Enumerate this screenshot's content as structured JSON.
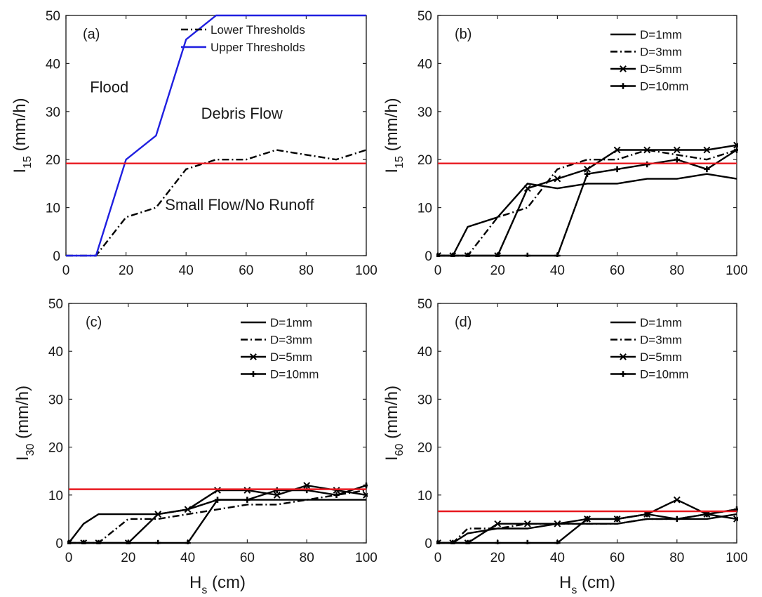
{
  "chart_data": [
    {
      "type": "line",
      "panel_label": "(a)",
      "xlabel_main": "",
      "xlabel_sub": "",
      "ylabel_main": "I",
      "ylabel_sub": "15",
      "ylabel_unit": " (mm/h)",
      "xlim": [
        0,
        100
      ],
      "ylim": [
        0,
        50
      ],
      "xticks": [
        0,
        20,
        40,
        60,
        80,
        100
      ],
      "yticks": [
        0,
        10,
        20,
        30,
        40,
        50
      ],
      "grid": false,
      "legend_position": "top-right",
      "reference_line": {
        "y": 19.2,
        "color": "#e8181f"
      },
      "series": [
        {
          "name": "Lower Thresholds",
          "style": "dashdot",
          "marker": "none",
          "color": "#000000",
          "x": [
            0,
            10,
            20,
            30,
            40,
            50,
            60,
            70,
            80,
            90,
            100
          ],
          "y": [
            0,
            0,
            8,
            10,
            18,
            20,
            20,
            22,
            21,
            20,
            22
          ]
        },
        {
          "name": "Upper Thresholds",
          "style": "solid",
          "marker": "none",
          "color": "#1f1fe0",
          "x": [
            0,
            10,
            20,
            30,
            40,
            50,
            60,
            70,
            80,
            90,
            100
          ],
          "y": [
            0,
            0,
            20,
            25,
            45,
            50,
            50,
            50,
            50,
            50,
            50
          ]
        }
      ],
      "annotations": [
        {
          "text": "Flood",
          "x": 8,
          "y": 34
        },
        {
          "text": "Debris Flow",
          "x": 45,
          "y": 28.5
        },
        {
          "text": "Small Flow/No Runoff",
          "x": 33,
          "y": 9.5
        }
      ]
    },
    {
      "type": "line",
      "panel_label": "(b)",
      "xlabel_main": "",
      "xlabel_sub": "",
      "ylabel_main": "I",
      "ylabel_sub": "15",
      "ylabel_unit": " (mm/h)",
      "xlim": [
        0,
        100
      ],
      "ylim": [
        0,
        50
      ],
      "xticks": [
        0,
        20,
        40,
        60,
        80,
        100
      ],
      "yticks": [
        0,
        10,
        20,
        30,
        40,
        50
      ],
      "grid": false,
      "legend_position": "top-right",
      "reference_line": {
        "y": 19.2,
        "color": "#e8181f"
      },
      "series": [
        {
          "name": "D=1mm",
          "style": "solid",
          "marker": "none",
          "color": "#000000",
          "x": [
            0,
            5,
            10,
            20,
            30,
            40,
            50,
            60,
            70,
            80,
            90,
            100
          ],
          "y": [
            0,
            0,
            6,
            8,
            15,
            14,
            15,
            15,
            16,
            16,
            17,
            16
          ]
        },
        {
          "name": "D=3mm",
          "style": "dashdot",
          "marker": "none",
          "color": "#000000",
          "x": [
            0,
            5,
            10,
            20,
            30,
            40,
            50,
            60,
            70,
            80,
            90,
            100
          ],
          "y": [
            0,
            0,
            0,
            8,
            10,
            18,
            20,
            20,
            22,
            21,
            20,
            22
          ]
        },
        {
          "name": "D=5mm",
          "style": "solid",
          "marker": "x",
          "color": "#000000",
          "x": [
            0,
            5,
            10,
            20,
            30,
            40,
            50,
            60,
            70,
            80,
            90,
            100
          ],
          "y": [
            0,
            0,
            0,
            0,
            14,
            16,
            18,
            22,
            22,
            22,
            22,
            23
          ]
        },
        {
          "name": "D=10mm",
          "style": "solid",
          "marker": "plus",
          "color": "#000000",
          "x": [
            0,
            5,
            10,
            20,
            30,
            40,
            50,
            60,
            70,
            80,
            90,
            100
          ],
          "y": [
            0,
            0,
            0,
            0,
            0,
            0,
            17,
            18,
            19,
            20,
            18,
            22
          ]
        }
      ],
      "annotations": []
    },
    {
      "type": "line",
      "panel_label": "(c)",
      "xlabel_main": "H",
      "xlabel_sub": "s",
      "xlabel_unit": " (cm)",
      "ylabel_main": "I",
      "ylabel_sub": "30",
      "ylabel_unit": " (mm/h)",
      "xlim": [
        0,
        100
      ],
      "ylim": [
        0,
        50
      ],
      "xticks": [
        0,
        20,
        40,
        60,
        80,
        100
      ],
      "yticks": [
        0,
        10,
        20,
        30,
        40,
        50
      ],
      "grid": false,
      "legend_position": "top-right",
      "reference_line": {
        "y": 11.2,
        "color": "#e8181f"
      },
      "series": [
        {
          "name": "D=1mm",
          "style": "solid",
          "marker": "none",
          "color": "#000000",
          "x": [
            0,
            5,
            10,
            20,
            30,
            40,
            50,
            60,
            70,
            80,
            90,
            100
          ],
          "y": [
            0,
            4,
            6,
            6,
            6,
            7,
            9,
            9,
            9,
            9,
            9,
            9
          ]
        },
        {
          "name": "D=3mm",
          "style": "dashdot",
          "marker": "none",
          "color": "#000000",
          "x": [
            0,
            5,
            10,
            20,
            30,
            40,
            50,
            60,
            70,
            80,
            90,
            100
          ],
          "y": [
            0,
            0,
            0,
            5,
            5,
            6,
            7,
            8,
            8,
            9,
            10,
            11
          ]
        },
        {
          "name": "D=5mm",
          "style": "solid",
          "marker": "x",
          "color": "#000000",
          "x": [
            0,
            5,
            10,
            20,
            30,
            40,
            50,
            60,
            70,
            80,
            90,
            100
          ],
          "y": [
            0,
            0,
            0,
            0,
            6,
            7,
            11,
            11,
            10,
            12,
            11,
            10
          ]
        },
        {
          "name": "D=10mm",
          "style": "solid",
          "marker": "plus",
          "color": "#000000",
          "x": [
            0,
            5,
            10,
            20,
            30,
            40,
            50,
            60,
            70,
            80,
            90,
            100
          ],
          "y": [
            0,
            0,
            0,
            0,
            0,
            0,
            9,
            9,
            11,
            11,
            10,
            12
          ]
        }
      ],
      "annotations": []
    },
    {
      "type": "line",
      "panel_label": "(d)",
      "xlabel_main": "H",
      "xlabel_sub": "s",
      "xlabel_unit": " (cm)",
      "ylabel_main": "I",
      "ylabel_sub": "60",
      "ylabel_unit": " (mm/h)",
      "xlim": [
        0,
        100
      ],
      "ylim": [
        0,
        50
      ],
      "xticks": [
        0,
        20,
        40,
        60,
        80,
        100
      ],
      "yticks": [
        0,
        10,
        20,
        30,
        40,
        50
      ],
      "grid": false,
      "legend_position": "top-right",
      "reference_line": {
        "y": 6.6,
        "color": "#e8181f"
      },
      "series": [
        {
          "name": "D=1mm",
          "style": "solid",
          "marker": "none",
          "color": "#000000",
          "x": [
            0,
            5,
            10,
            20,
            30,
            40,
            50,
            60,
            70,
            80,
            90,
            100
          ],
          "y": [
            0,
            0,
            2,
            3,
            3,
            4,
            4,
            4,
            5,
            5,
            5,
            6
          ]
        },
        {
          "name": "D=3mm",
          "style": "dashdot",
          "marker": "none",
          "color": "#000000",
          "x": [
            0,
            5,
            10,
            20,
            30,
            40,
            50,
            60,
            70,
            80,
            90,
            100
          ],
          "y": [
            0,
            0,
            3,
            3,
            4,
            4,
            4,
            4,
            5,
            5,
            6,
            7
          ]
        },
        {
          "name": "D=5mm",
          "style": "solid",
          "marker": "x",
          "color": "#000000",
          "x": [
            0,
            5,
            10,
            20,
            30,
            40,
            50,
            60,
            70,
            80,
            90,
            100
          ],
          "y": [
            0,
            0,
            0,
            4,
            4,
            4,
            5,
            5,
            6,
            9,
            6,
            5
          ]
        },
        {
          "name": "D=10mm",
          "style": "solid",
          "marker": "plus",
          "color": "#000000",
          "x": [
            0,
            5,
            10,
            20,
            30,
            40,
            50,
            60,
            70,
            80,
            90,
            100
          ],
          "y": [
            0,
            0,
            0,
            0,
            0,
            0,
            5,
            5,
            6,
            5,
            6,
            7
          ]
        }
      ],
      "annotations": []
    }
  ]
}
